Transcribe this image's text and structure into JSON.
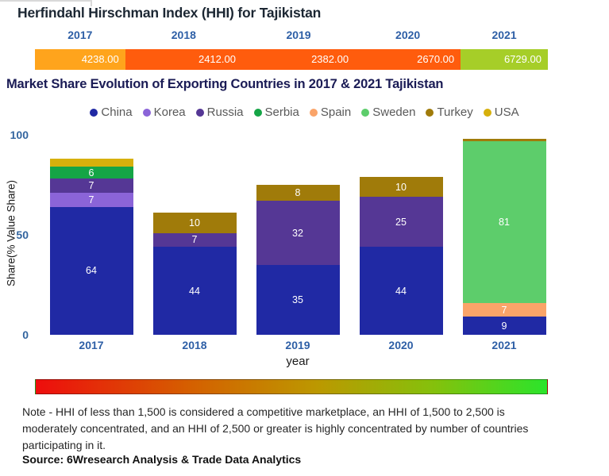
{
  "hhi": {
    "title": "Herfindahl Hirschman Index (HHI) for Tajikistan",
    "years": [
      "2017",
      "2018",
      "2019",
      "2020",
      "2021"
    ],
    "values": [
      "4238.00",
      "2412.00",
      "2382.00",
      "2670.00",
      "6729.00"
    ],
    "segment_colors": [
      "#FFA41C",
      "#FF5C0D",
      "#FF5C0D",
      "#FF5C0D",
      "#A6CE28"
    ],
    "segment_widths_pct": [
      17.6,
      22.8,
      22.0,
      20.6,
      17.0
    ],
    "value_text_color": "#ffffff",
    "year_label_color": "#2e5fa6"
  },
  "chart_data": {
    "type": "bar",
    "stacked": true,
    "title": "Market Share Evolution of Exporting Countries in 2017 & 2021 Tajikistan",
    "categories": [
      "2017",
      "2018",
      "2019",
      "2020",
      "2021"
    ],
    "series": [
      {
        "name": "China",
        "color": "#2029A4",
        "values": [
          64,
          44,
          35,
          44,
          9
        ]
      },
      {
        "name": "Korea",
        "color": "#8B64D8",
        "values": [
          7,
          0,
          0,
          0,
          0
        ]
      },
      {
        "name": "Russia",
        "color": "#553795",
        "values": [
          7,
          7,
          32,
          25,
          0
        ]
      },
      {
        "name": "Serbia",
        "color": "#15A546",
        "values": [
          6,
          0,
          0,
          0,
          0
        ]
      },
      {
        "name": "Spain",
        "color": "#FAA469",
        "values": [
          0,
          0,
          0,
          0,
          7
        ]
      },
      {
        "name": "Sweden",
        "color": "#5DCD6B",
        "values": [
          0,
          0,
          0,
          0,
          81
        ]
      },
      {
        "name": "Turkey",
        "color": "#A07B0A",
        "values": [
          0,
          10,
          8,
          10,
          1
        ]
      },
      {
        "name": "USA",
        "color": "#D7B00C",
        "values": [
          4,
          0,
          0,
          0,
          0
        ]
      }
    ],
    "xlabel": "year",
    "ylabel": "Share(% Value Share)",
    "ylim": [
      0,
      100
    ],
    "yticks": [
      0,
      50,
      100
    ],
    "grid": false,
    "legend_position": "top",
    "label_min_value": 5,
    "label_color": "#ffffff"
  },
  "gradient_scale": {
    "stops": [
      "#EE0D0D 0%",
      "#D55F00 30%",
      "#BC9800 55%",
      "#84C10C 78%",
      "#2BE42B 100%"
    ]
  },
  "note": {
    "text": "Note - HHI of less than 1,500 is considered a competitive marketplace, an HHI of 1,500 to 2,500 is moderately concentrated, and an HHI of 2,500 or greater is highly concentrated by number of countries participating in it.",
    "source": "Source: 6Wresearch Analysis & Trade Data Analytics"
  }
}
